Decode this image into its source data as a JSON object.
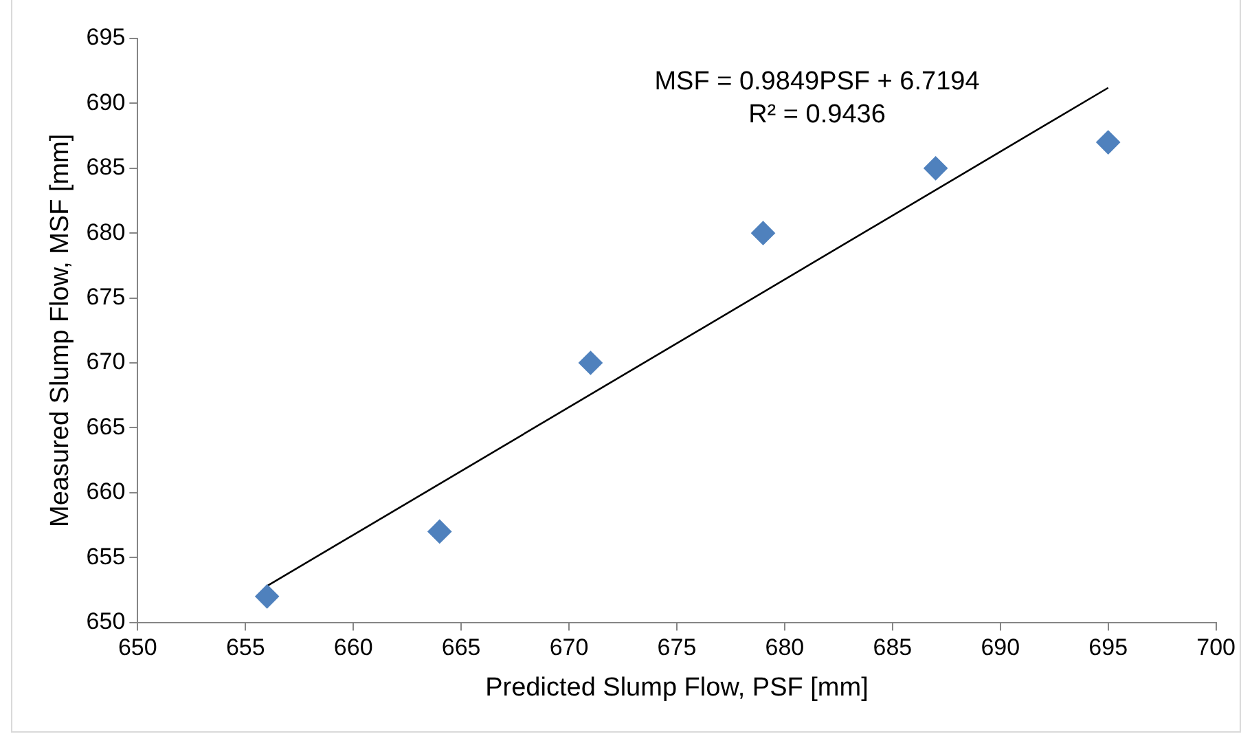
{
  "chart_data": {
    "type": "scatter",
    "xlabel": "Predicted Slump Flow, PSF [mm]",
    "ylabel": "Measured Slump Flow, MSF [mm]",
    "annotations": [
      "MSF = 0.9849PSF + 6.7194",
      "R² = 0.9436"
    ],
    "series": [
      {
        "color": "#4f81bd",
        "marker": "diamond",
        "x": [
          656,
          664,
          671,
          679,
          687,
          695
        ],
        "values": [
          652,
          657,
          670,
          680,
          685,
          687
        ]
      },
      {
        "type": "line",
        "color": "#000000",
        "marker": "none",
        "line_style": "solid",
        "x": [
          656,
          695
        ],
        "values": [
          652.8,
          691.2
        ]
      }
    ],
    "xlim": [
      650,
      700
    ],
    "xticks": [
      650,
      655,
      660,
      665,
      670,
      675,
      680,
      685,
      690,
      695,
      700
    ],
    "ylim": [
      650,
      695
    ],
    "yticks": [
      650,
      655,
      660,
      665,
      670,
      675,
      680,
      685,
      690,
      695
    ],
    "grid": false,
    "legend": false
  }
}
